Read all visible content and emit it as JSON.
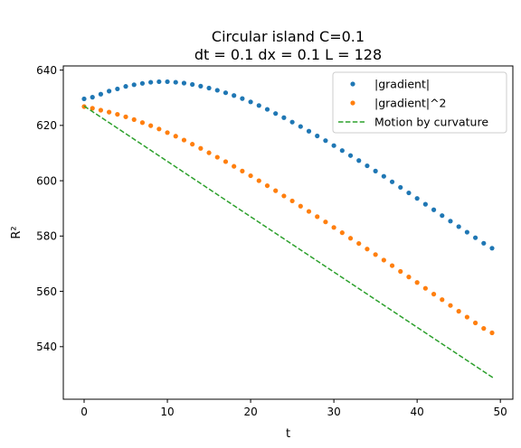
{
  "chart_data": {
    "type": "scatter",
    "title_lines": [
      "Circular island C=0.1",
      "dt = 0.1 dx = 0.1 L = 128"
    ],
    "xlabel": "t",
    "ylabel": "R²",
    "xlim": [
      -2.5,
      51.5
    ],
    "ylim": [
      521,
      641.5
    ],
    "xticks": [
      0,
      10,
      20,
      30,
      40,
      50
    ],
    "yticks": [
      540,
      560,
      580,
      600,
      620,
      640
    ],
    "grid": false,
    "legend_position": "top-right",
    "series": [
      {
        "name": "|gradient|",
        "style": "dots",
        "color": "#1f77b4",
        "x": [
          0,
          1,
          2,
          3,
          4,
          5,
          6,
          7,
          8,
          9,
          10,
          11,
          12,
          13,
          14,
          15,
          16,
          17,
          18,
          19,
          20,
          21,
          22,
          23,
          24,
          25,
          26,
          27,
          28,
          29,
          30,
          31,
          32,
          33,
          34,
          35,
          36,
          37,
          38,
          39,
          40,
          41,
          42,
          43,
          44,
          45,
          46,
          47,
          48,
          49
        ],
        "y": [
          629.6,
          630.2,
          631.3,
          632.4,
          633.2,
          634.1,
          634.7,
          635.2,
          635.6,
          635.8,
          635.8,
          635.6,
          635.3,
          634.8,
          634.2,
          633.5,
          632.7,
          631.8,
          630.8,
          629.7,
          628.5,
          627.2,
          625.8,
          624.3,
          622.8,
          621.2,
          619.6,
          617.9,
          616.2,
          614.5,
          612.7,
          610.9,
          609.1,
          607.3,
          605.4,
          603.5,
          601.6,
          599.6,
          597.6,
          595.6,
          593.6,
          591.5,
          589.5,
          587.4,
          585.4,
          583.4,
          581.4,
          579.4,
          577.4,
          575.6
        ]
      },
      {
        "name": "|gradient|^2",
        "style": "dots",
        "color": "#ff7f0e",
        "x": [
          0,
          1,
          2,
          3,
          4,
          5,
          6,
          7,
          8,
          9,
          10,
          11,
          12,
          13,
          14,
          15,
          16,
          17,
          18,
          19,
          20,
          21,
          22,
          23,
          24,
          25,
          26,
          27,
          28,
          29,
          30,
          31,
          32,
          33,
          34,
          35,
          36,
          37,
          38,
          39,
          40,
          41,
          42,
          43,
          44,
          45,
          46,
          47,
          48,
          49
        ],
        "y": [
          626.8,
          626.2,
          625.5,
          624.8,
          624.0,
          623.1,
          622.1,
          621.0,
          619.9,
          618.7,
          617.4,
          616.1,
          614.7,
          613.2,
          611.7,
          610.1,
          608.5,
          606.9,
          605.2,
          603.5,
          601.8,
          600.0,
          598.2,
          596.4,
          594.5,
          592.7,
          590.8,
          588.9,
          587.0,
          585.1,
          583.1,
          581.2,
          579.2,
          577.3,
          575.3,
          573.3,
          571.3,
          569.3,
          567.2,
          565.2,
          563.2,
          561.1,
          559.0,
          557.0,
          554.9,
          552.8,
          550.7,
          548.6,
          546.6,
          545.0
        ]
      },
      {
        "name": "Motion by curvature",
        "style": "dashed-line",
        "color": "#2ca02c",
        "x": [
          0,
          49.2
        ],
        "y": [
          627.0,
          528.6
        ]
      }
    ]
  }
}
